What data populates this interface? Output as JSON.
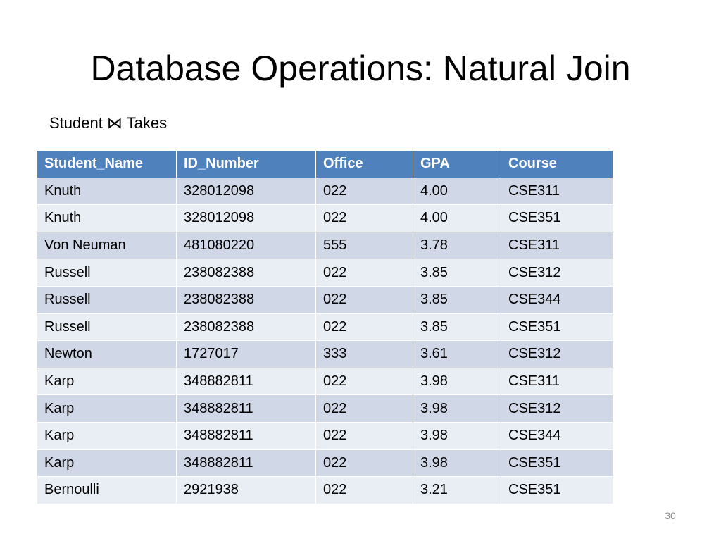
{
  "slide": {
    "title": "Database Operations: Natural Join",
    "subtitle": "Student ⋈ Takes",
    "page_number": "30"
  },
  "colors": {
    "header_background": "#4f81bd",
    "header_text": "#ffffff",
    "row_band_dark": "#d0d8e8",
    "row_band_light": "#e9edf4",
    "page_number_text": "#8c8c8c"
  },
  "table": {
    "columns": [
      "Student_Name",
      "ID_Number",
      "Office",
      "GPA",
      "Course"
    ],
    "rows": [
      [
        "Knuth",
        "328012098",
        "022",
        "4.00",
        "CSE311"
      ],
      [
        "Knuth",
        "328012098",
        "022",
        "4.00",
        "CSE351"
      ],
      [
        "Von Neuman",
        "481080220",
        "555",
        "3.78",
        "CSE311"
      ],
      [
        "Russell",
        "238082388",
        "022",
        "3.85",
        "CSE312"
      ],
      [
        "Russell",
        "238082388",
        "022",
        "3.85",
        "CSE344"
      ],
      [
        "Russell",
        "238082388",
        "022",
        "3.85",
        "CSE351"
      ],
      [
        "Newton",
        "1727017",
        "333",
        "3.61",
        "CSE312"
      ],
      [
        "Karp",
        "348882811",
        "022",
        "3.98",
        "CSE311"
      ],
      [
        "Karp",
        "348882811",
        "022",
        "3.98",
        "CSE312"
      ],
      [
        "Karp",
        "348882811",
        "022",
        "3.98",
        "CSE344"
      ],
      [
        "Karp",
        "348882811",
        "022",
        "3.98",
        "CSE351"
      ],
      [
        "Bernoulli",
        "2921938",
        "022",
        "3.21",
        "CSE351"
      ]
    ]
  }
}
